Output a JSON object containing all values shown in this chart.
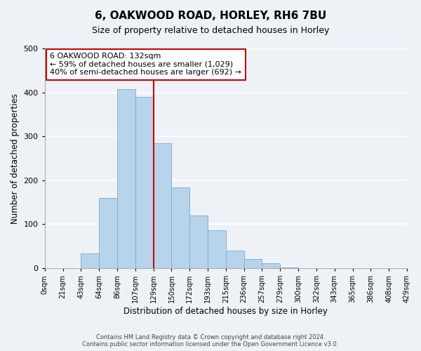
{
  "title": "6, OAKWOOD ROAD, HORLEY, RH6 7BU",
  "subtitle": "Size of property relative to detached houses in Horley",
  "xlabel": "Distribution of detached houses by size in Horley",
  "ylabel": "Number of detached properties",
  "footer_line1": "Contains HM Land Registry data © Crown copyright and database right 2024.",
  "footer_line2": "Contains public sector information licensed under the Open Government Licence v3.0.",
  "bin_labels": [
    "0sqm",
    "21sqm",
    "43sqm",
    "64sqm",
    "86sqm",
    "107sqm",
    "129sqm",
    "150sqm",
    "172sqm",
    "193sqm",
    "215sqm",
    "236sqm",
    "257sqm",
    "279sqm",
    "300sqm",
    "322sqm",
    "343sqm",
    "365sqm",
    "386sqm",
    "408sqm",
    "429sqm"
  ],
  "bar_heights": [
    0,
    0,
    33,
    160,
    408,
    390,
    285,
    183,
    120,
    87,
    40,
    21,
    11,
    2,
    0,
    0,
    0,
    0,
    0,
    0
  ],
  "bar_color": "#b8d4ea",
  "bar_edge_color": "#7aaac8",
  "vline_x": 6,
  "vline_color": "#cc0000",
  "annotation_box_text_line1": "6 OAKWOOD ROAD: 132sqm",
  "annotation_box_text_line2": "← 59% of detached houses are smaller (1,029)",
  "annotation_box_text_line3": "40% of semi-detached houses are larger (692) →",
  "annotation_box_edge_color": "#cc0000",
  "annotation_box_face_color": "#ffffff",
  "ylim": [
    0,
    500
  ],
  "background_color": "#eef2f7"
}
